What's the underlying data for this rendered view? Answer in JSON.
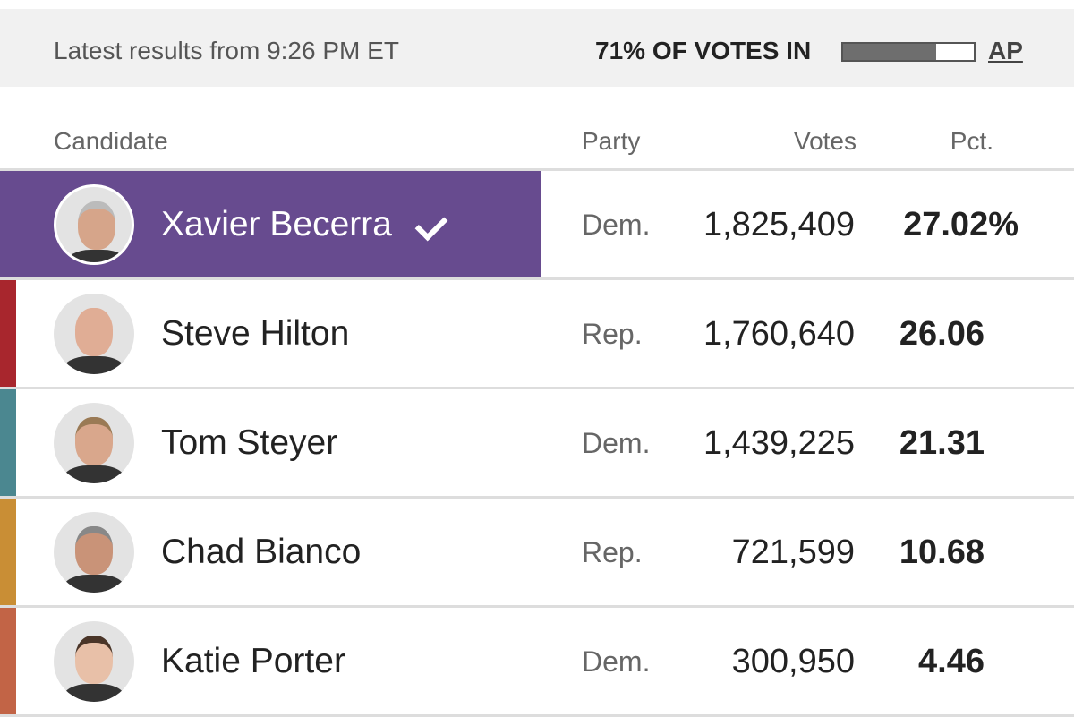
{
  "header": {
    "updated": "Latest results from 9:26 PM ET",
    "reporting": "71% OF VOTES IN",
    "reporting_pct": 71,
    "source": "AP"
  },
  "table": {
    "columns": [
      "Candidate",
      "Party",
      "Votes",
      "Pct."
    ],
    "rows": [
      {
        "name": "Xavier Becerra",
        "party": "Dem.",
        "votes": "1,825,409",
        "pct": "27.02%",
        "winner": true,
        "color": "#674b8f"
      },
      {
        "name": "Steve Hilton",
        "party": "Rep.",
        "votes": "1,760,640",
        "pct": "26.06",
        "winner": false,
        "color": "#a8262d"
      },
      {
        "name": "Tom Steyer",
        "party": "Dem.",
        "votes": "1,439,225",
        "pct": "21.31",
        "winner": false,
        "color": "#4b8790"
      },
      {
        "name": "Chad Bianco",
        "party": "Rep.",
        "votes": "721,599",
        "pct": "10.68",
        "winner": false,
        "color": "#c98e35"
      },
      {
        "name": "Katie Porter",
        "party": "Dem.",
        "votes": "300,950",
        "pct": "4.46",
        "winner": false,
        "color": "#c26446"
      }
    ]
  }
}
